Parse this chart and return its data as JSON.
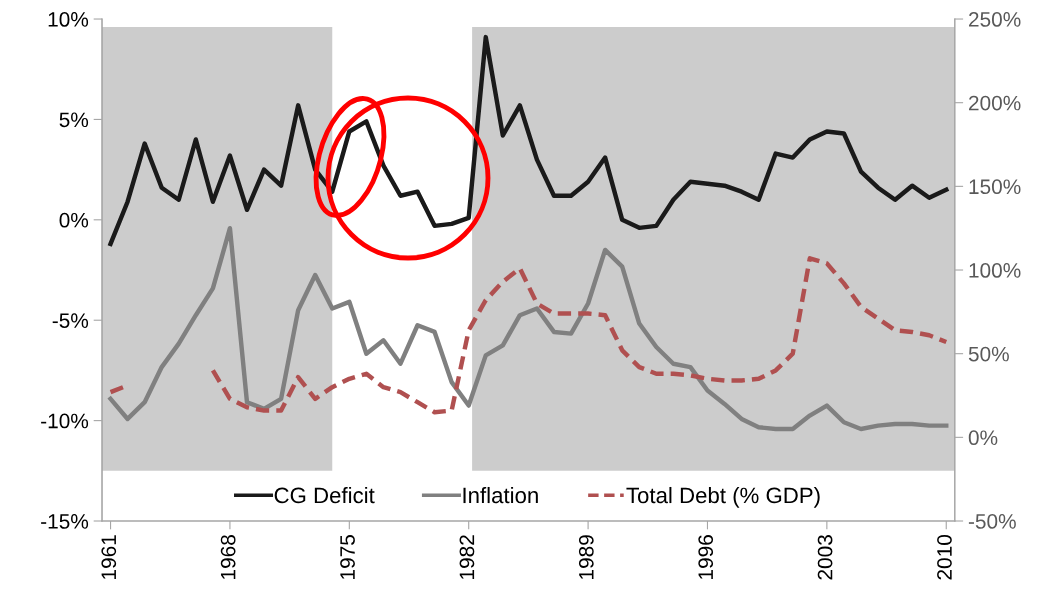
{
  "chart_data": {
    "type": "line",
    "x": [
      1961,
      1962,
      1963,
      1964,
      1965,
      1966,
      1967,
      1968,
      1969,
      1970,
      1971,
      1972,
      1973,
      1974,
      1975,
      1976,
      1977,
      1978,
      1979,
      1980,
      1981,
      1982,
      1983,
      1984,
      1985,
      1986,
      1987,
      1988,
      1989,
      1990,
      1991,
      1992,
      1993,
      1994,
      1995,
      1996,
      1997,
      1998,
      1999,
      2000,
      2001,
      2002,
      2003,
      2004,
      2005,
      2006,
      2007,
      2008,
      2009,
      2010
    ],
    "series": [
      {
        "name": "CG Deficit",
        "color": "#1a1a1a",
        "line_style": "solid",
        "values": [
          -1.2,
          0.9,
          3.8,
          1.6,
          1.0,
          4.0,
          0.9,
          3.2,
          0.5,
          2.5,
          1.7,
          5.7,
          2.5,
          1.4,
          4.4,
          4.9,
          2.7,
          1.2,
          1.4,
          -0.3,
          -0.2,
          0.1,
          9.1,
          4.2,
          5.7,
          3.0,
          1.2,
          1.2,
          1.9,
          3.1,
          0.0,
          -0.4,
          -0.3,
          1.0,
          1.9,
          1.8,
          1.7,
          1.4,
          1.0,
          3.3,
          3.1,
          4.0,
          4.4,
          4.3,
          2.4,
          1.6,
          1.0,
          1.7,
          1.1,
          1.5
        ]
      },
      {
        "name": "Inflation",
        "color": "#808080",
        "axis": "y2",
        "line_style": "solid",
        "values": [
          23,
          11,
          21,
          42,
          56,
          73,
          89,
          125,
          21,
          17,
          23,
          76,
          97,
          77,
          81,
          50,
          58,
          44,
          67,
          63,
          33,
          19,
          49,
          55,
          73,
          77,
          63,
          62,
          80,
          112,
          102,
          68,
          54,
          44,
          42,
          28,
          20,
          11,
          6,
          5,
          5,
          13,
          19,
          9,
          5,
          7,
          8,
          8,
          7,
          7
        ]
      },
      {
        "name": "Total Debt (% GDP)",
        "color": "#b05050",
        "axis": "y2",
        "line_style": "dashed",
        "values": [
          27,
          31,
          null,
          null,
          null,
          null,
          40,
          23,
          18,
          16,
          16,
          36,
          23,
          30,
          35,
          38,
          30,
          27,
          21,
          15,
          16,
          64,
          82,
          93,
          101,
          80,
          74,
          74,
          74,
          73,
          52,
          42,
          38,
          38,
          37,
          35,
          34,
          34,
          35,
          40,
          50,
          107,
          104,
          92,
          78,
          71,
          64,
          63,
          61,
          57
        ]
      }
    ],
    "xlim": [
      1960.5,
      2010.5
    ],
    "xticks": [
      1961,
      1968,
      1975,
      1982,
      1989,
      1996,
      2003,
      2010
    ],
    "ylim": [
      -15,
      10
    ],
    "yticks": [
      {
        "value": -15,
        "label": "-15%"
      },
      {
        "value": -10,
        "label": "-10%"
      },
      {
        "value": -5,
        "label": "-5%"
      },
      {
        "value": 0,
        "label": "0%"
      },
      {
        "value": 5,
        "label": "5%"
      },
      {
        "value": 10,
        "label": "10%"
      }
    ],
    "y2lim": [
      -50,
      250
    ],
    "y2ticks": [
      {
        "value": -50,
        "label": "-50%"
      },
      {
        "value": 0,
        "label": "0%"
      },
      {
        "value": 50,
        "label": "50%"
      },
      {
        "value": 100,
        "label": "100%"
      },
      {
        "value": 150,
        "label": "150%"
      },
      {
        "value": 200,
        "label": "200%"
      },
      {
        "value": 250,
        "label": "250%"
      }
    ],
    "bands": [
      {
        "axis": "x",
        "from": 1960.5,
        "to": 1974,
        "color": "#cccccc"
      },
      {
        "axis": "x",
        "from": 1982.2,
        "to": 2010.5,
        "color": "#cccccc"
      }
    ],
    "legend": "bottom",
    "grid": false,
    "marker": "none"
  }
}
